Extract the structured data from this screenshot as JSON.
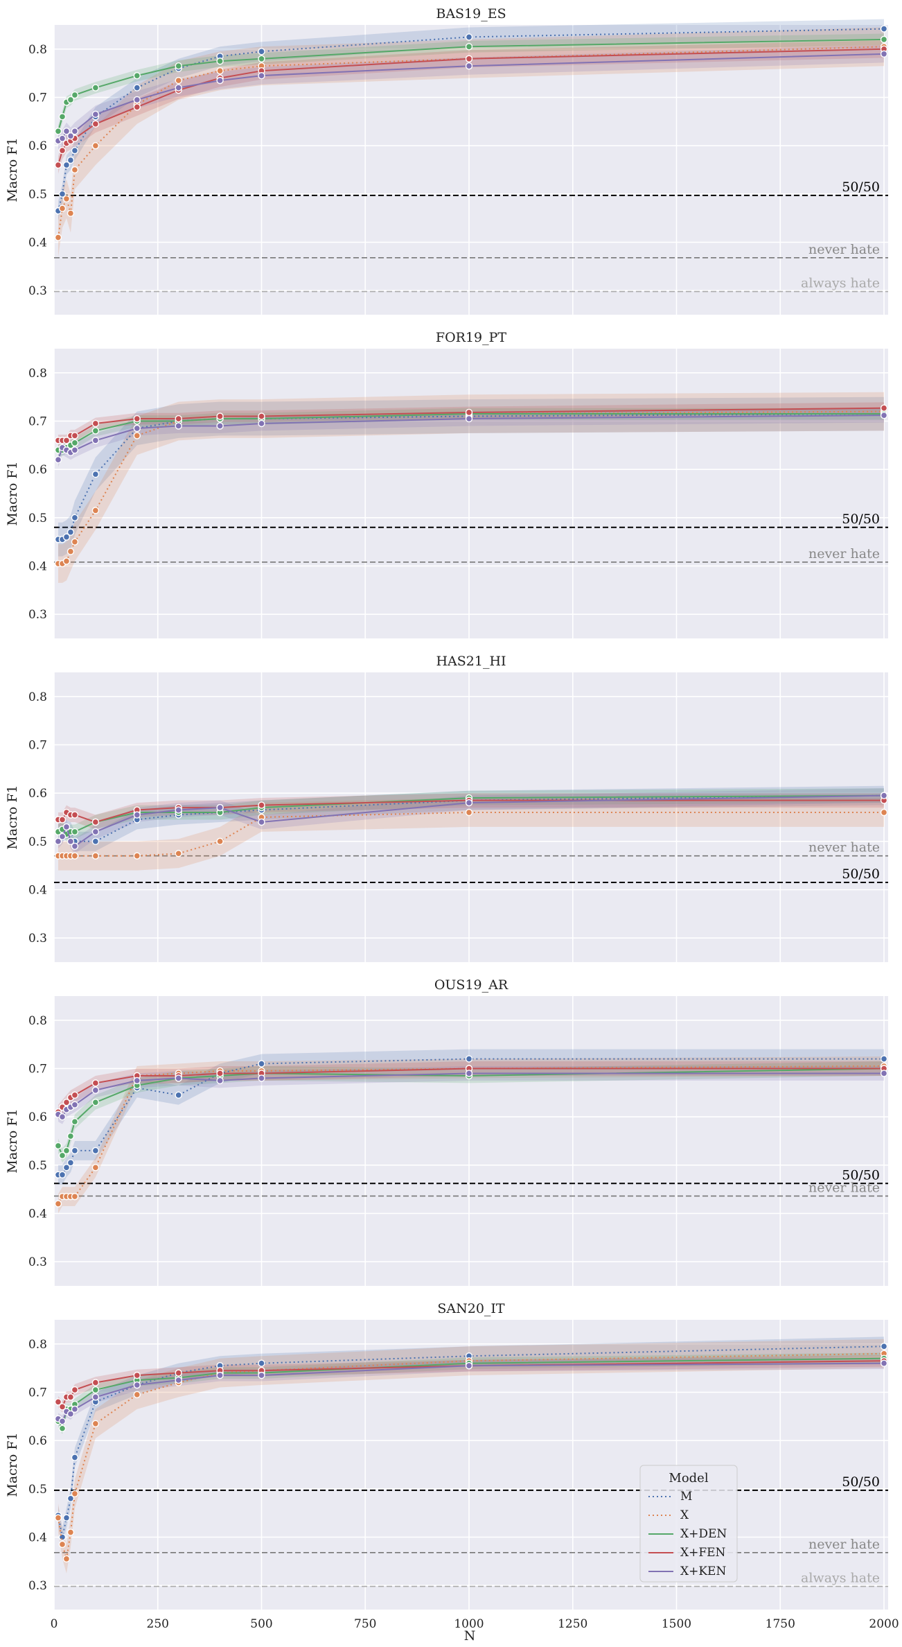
{
  "figure": {
    "xlabel": "N",
    "ylabel": "Macro F1",
    "x_ticks": [
      0,
      250,
      500,
      750,
      1000,
      1250,
      1500,
      1750,
      2000
    ],
    "y_ticks": [
      0.3,
      0.4,
      0.5,
      0.6,
      0.7,
      0.8
    ],
    "legend": {
      "title": "Model",
      "placement": "inside bottom panel, lower-right",
      "entries": [
        {
          "name": "M",
          "style": "dotted",
          "color": "#4c72b0"
        },
        {
          "name": "X",
          "style": "dotted",
          "color": "#dd8452"
        },
        {
          "name": "X+DEN",
          "style": "solid",
          "color": "#55a868"
        },
        {
          "name": "X+FEN",
          "style": "solid",
          "color": "#c44e52"
        },
        {
          "name": "X+KEN",
          "style": "solid",
          "color": "#8172b3"
        }
      ]
    },
    "colors": {
      "M": "#4c72b0",
      "X": "#dd8452",
      "X+DEN": "#55a868",
      "X+FEN": "#c44e52",
      "X+KEN": "#8172b3",
      "panel_bg": "#eaeaf2",
      "grid": "#ffffff"
    }
  },
  "chart_data": [
    {
      "type": "line",
      "title": "BAS19_ES",
      "xlabel": "",
      "ylabel": "Macro F1",
      "xlim": [
        0,
        2010
      ],
      "ylim": [
        0.25,
        0.85
      ],
      "grid": true,
      "x": [
        10,
        20,
        30,
        40,
        50,
        100,
        200,
        300,
        400,
        500,
        1000,
        2000
      ],
      "series": [
        {
          "name": "M",
          "values": [
            0.465,
            0.5,
            0.56,
            0.57,
            0.59,
            0.66,
            0.72,
            0.76,
            0.785,
            0.795,
            0.825,
            0.842
          ],
          "band": 0.02
        },
        {
          "name": "X",
          "values": [
            0.41,
            0.47,
            0.49,
            0.46,
            0.55,
            0.6,
            0.685,
            0.735,
            0.755,
            0.765,
            0.78,
            0.805
          ],
          "band": 0.04
        },
        {
          "name": "X+DEN",
          "values": [
            0.63,
            0.66,
            0.69,
            0.695,
            0.705,
            0.72,
            0.745,
            0.765,
            0.775,
            0.78,
            0.805,
            0.82
          ],
          "band": 0.012
        },
        {
          "name": "X+FEN",
          "values": [
            0.56,
            0.59,
            0.605,
            0.61,
            0.615,
            0.645,
            0.68,
            0.715,
            0.74,
            0.755,
            0.78,
            0.8
          ],
          "band": 0.018
        },
        {
          "name": "X+KEN",
          "values": [
            0.61,
            0.615,
            0.63,
            0.62,
            0.63,
            0.665,
            0.695,
            0.72,
            0.735,
            0.745,
            0.765,
            0.79
          ],
          "band": 0.018
        }
      ],
      "reference_lines": [
        {
          "label": "50/50",
          "value": 0.497,
          "style": "dashed",
          "color": "#000000",
          "label_color": "#000000"
        },
        {
          "label": "never hate",
          "value": 0.368,
          "style": "dashed",
          "color": "#777777",
          "label_color": "#888888"
        },
        {
          "label": "always hate",
          "value": 0.298,
          "style": "dashed",
          "color": "#aaaaaa",
          "label_color": "#aaaaaa"
        }
      ]
    },
    {
      "type": "line",
      "title": "FOR19_PT",
      "xlabel": "",
      "ylabel": "Macro F1",
      "xlim": [
        0,
        2010
      ],
      "ylim": [
        0.25,
        0.85
      ],
      "grid": true,
      "x": [
        10,
        20,
        30,
        40,
        50,
        100,
        200,
        300,
        400,
        500,
        1000,
        2000
      ],
      "series": [
        {
          "name": "M",
          "values": [
            0.455,
            0.455,
            0.46,
            0.47,
            0.5,
            0.59,
            0.685,
            0.7,
            0.705,
            0.705,
            0.71,
            0.715
          ],
          "band": 0.035
        },
        {
          "name": "X",
          "values": [
            0.405,
            0.405,
            0.41,
            0.43,
            0.45,
            0.515,
            0.67,
            0.7,
            0.705,
            0.705,
            0.715,
            0.72
          ],
          "band": 0.04
        },
        {
          "name": "X+DEN",
          "values": [
            0.64,
            0.64,
            0.645,
            0.65,
            0.655,
            0.68,
            0.7,
            0.7,
            0.705,
            0.705,
            0.715,
            0.715
          ],
          "band": 0.012
        },
        {
          "name": "X+FEN",
          "values": [
            0.66,
            0.66,
            0.66,
            0.67,
            0.67,
            0.695,
            0.705,
            0.705,
            0.71,
            0.71,
            0.718,
            0.727
          ],
          "band": 0.012
        },
        {
          "name": "X+KEN",
          "values": [
            0.62,
            0.645,
            0.64,
            0.635,
            0.64,
            0.66,
            0.685,
            0.69,
            0.69,
            0.695,
            0.705,
            0.712
          ],
          "band": 0.015
        }
      ],
      "reference_lines": [
        {
          "label": "50/50",
          "value": 0.48,
          "style": "dashed",
          "color": "#000000",
          "label_color": "#000000"
        },
        {
          "label": "never hate",
          "value": 0.408,
          "style": "dashed",
          "color": "#777777",
          "label_color": "#888888"
        }
      ]
    },
    {
      "type": "line",
      "title": "HAS21_HI",
      "xlabel": "",
      "ylabel": "Macro F1",
      "xlim": [
        0,
        2010
      ],
      "ylim": [
        0.25,
        0.85
      ],
      "grid": true,
      "x": [
        10,
        20,
        30,
        40,
        50,
        100,
        200,
        300,
        400,
        500,
        1000,
        2000
      ],
      "series": [
        {
          "name": "M",
          "values": [
            0.52,
            0.52,
            0.525,
            0.52,
            0.5,
            0.5,
            0.545,
            0.555,
            0.56,
            0.565,
            0.585,
            0.595
          ],
          "band": 0.02
        },
        {
          "name": "X",
          "values": [
            0.47,
            0.47,
            0.47,
            0.47,
            0.47,
            0.47,
            0.47,
            0.475,
            0.5,
            0.55,
            0.56,
            0.56
          ],
          "band": 0.03
        },
        {
          "name": "X+DEN",
          "values": [
            0.52,
            0.525,
            0.515,
            0.52,
            0.52,
            0.54,
            0.56,
            0.56,
            0.56,
            0.57,
            0.59,
            0.595
          ],
          "band": 0.015
        },
        {
          "name": "X+FEN",
          "values": [
            0.545,
            0.545,
            0.56,
            0.555,
            0.555,
            0.54,
            0.565,
            0.57,
            0.57,
            0.575,
            0.585,
            0.585
          ],
          "band": 0.015
        },
        {
          "name": "X+KEN",
          "values": [
            0.5,
            0.51,
            0.53,
            0.5,
            0.49,
            0.52,
            0.555,
            0.565,
            0.57,
            0.54,
            0.58,
            0.595
          ],
          "band": 0.015
        }
      ],
      "reference_lines": [
        {
          "label": "never hate",
          "value": 0.47,
          "style": "dashed",
          "color": "#777777",
          "label_color": "#888888"
        },
        {
          "label": "50/50",
          "value": 0.415,
          "style": "dashed",
          "color": "#000000",
          "label_color": "#000000"
        }
      ]
    },
    {
      "type": "line",
      "title": "OUS19_AR",
      "xlabel": "",
      "ylabel": "Macro F1",
      "xlim": [
        0,
        2010
      ],
      "ylim": [
        0.25,
        0.85
      ],
      "grid": true,
      "x": [
        10,
        20,
        30,
        40,
        50,
        100,
        200,
        300,
        400,
        500,
        1000,
        2000
      ],
      "series": [
        {
          "name": "M",
          "values": [
            0.48,
            0.48,
            0.495,
            0.505,
            0.53,
            0.53,
            0.66,
            0.645,
            0.69,
            0.71,
            0.72,
            0.72
          ],
          "band": 0.02
        },
        {
          "name": "X",
          "values": [
            0.42,
            0.435,
            0.435,
            0.435,
            0.435,
            0.495,
            0.685,
            0.69,
            0.695,
            0.695,
            0.7,
            0.705
          ],
          "band": 0.02
        },
        {
          "name": "X+DEN",
          "values": [
            0.54,
            0.52,
            0.53,
            0.56,
            0.59,
            0.63,
            0.665,
            0.68,
            0.685,
            0.69,
            0.685,
            0.7
          ],
          "band": 0.015
        },
        {
          "name": "X+FEN",
          "values": [
            0.61,
            0.62,
            0.63,
            0.64,
            0.645,
            0.67,
            0.685,
            0.685,
            0.69,
            0.69,
            0.7,
            0.7
          ],
          "band": 0.015
        },
        {
          "name": "X+KEN",
          "values": [
            0.605,
            0.6,
            0.615,
            0.62,
            0.625,
            0.655,
            0.675,
            0.68,
            0.675,
            0.68,
            0.69,
            0.69
          ],
          "band": 0.015
        }
      ],
      "reference_lines": [
        {
          "label": "50/50",
          "value": 0.462,
          "style": "dashed",
          "color": "#000000",
          "label_color": "#000000"
        },
        {
          "label": "never hate",
          "value": 0.436,
          "style": "dashed",
          "color": "#777777",
          "label_color": "#888888"
        }
      ]
    },
    {
      "type": "line",
      "title": "SAN20_IT",
      "xlabel": "N",
      "ylabel": "Macro F1",
      "xlim": [
        0,
        2010
      ],
      "ylim": [
        0.25,
        0.85
      ],
      "grid": true,
      "x": [
        10,
        20,
        30,
        40,
        50,
        100,
        200,
        300,
        400,
        500,
        1000,
        2000
      ],
      "series": [
        {
          "name": "M",
          "values": [
            0.445,
            0.4,
            0.44,
            0.48,
            0.565,
            0.68,
            0.715,
            0.74,
            0.755,
            0.76,
            0.775,
            0.795
          ],
          "band": 0.02
        },
        {
          "name": "X",
          "values": [
            0.44,
            0.385,
            0.355,
            0.41,
            0.49,
            0.635,
            0.695,
            0.72,
            0.74,
            0.745,
            0.765,
            0.78
          ],
          "band": 0.03
        },
        {
          "name": "X+DEN",
          "values": [
            0.64,
            0.625,
            0.665,
            0.665,
            0.675,
            0.705,
            0.725,
            0.73,
            0.74,
            0.74,
            0.76,
            0.77
          ],
          "band": 0.012
        },
        {
          "name": "X+FEN",
          "values": [
            0.68,
            0.67,
            0.69,
            0.69,
            0.705,
            0.72,
            0.735,
            0.74,
            0.745,
            0.745,
            0.755,
            0.765
          ],
          "band": 0.012
        },
        {
          "name": "X+KEN",
          "values": [
            0.645,
            0.64,
            0.66,
            0.655,
            0.665,
            0.69,
            0.715,
            0.725,
            0.735,
            0.735,
            0.755,
            0.76
          ],
          "band": 0.012
        }
      ],
      "reference_lines": [
        {
          "label": "50/50",
          "value": 0.497,
          "style": "dashed",
          "color": "#000000",
          "label_color": "#000000"
        },
        {
          "label": "never hate",
          "value": 0.368,
          "style": "dashed",
          "color": "#777777",
          "label_color": "#888888"
        },
        {
          "label": "always hate",
          "value": 0.298,
          "style": "dashed",
          "color": "#aaaaaa",
          "label_color": "#aaaaaa"
        }
      ]
    }
  ]
}
